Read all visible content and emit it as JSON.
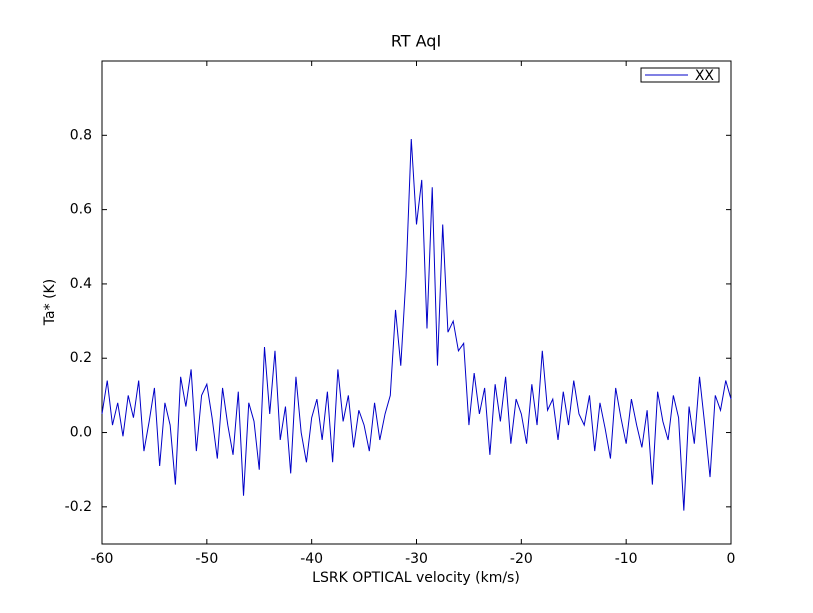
{
  "chart_data": {
    "type": "line",
    "title": "RT AqI",
    "x_label": "LSRK OPTICAL velocity (km/s)",
    "y_label": "Ta* (K)",
    "x": [
      -60,
      -59.5,
      -59,
      -58.5,
      -58,
      -57.5,
      -57,
      -56.5,
      -56,
      -55.5,
      -55,
      -54.5,
      -54,
      -53.5,
      -53,
      -52.5,
      -52,
      -51.5,
      -51,
      -50.5,
      -50,
      -49.5,
      -49,
      -48.5,
      -48,
      -47.5,
      -47,
      -46.5,
      -46,
      -45.5,
      -45,
      -44.5,
      -44,
      -43.5,
      -43,
      -42.5,
      -42,
      -41.5,
      -41,
      -40.5,
      -40,
      -39.5,
      -39,
      -38.5,
      -38,
      -37.5,
      -37,
      -36.5,
      -36,
      -35.5,
      -35,
      -34.5,
      -34,
      -33.5,
      -33,
      -32.5,
      -32,
      -31.5,
      -31,
      -30.5,
      -30,
      -29.5,
      -29,
      -28.5,
      -28,
      -27.5,
      -27,
      -26.5,
      -26,
      -25.5,
      -25,
      -24.5,
      -24,
      -23.5,
      -23,
      -22.5,
      -22,
      -21.5,
      -21,
      -20.5,
      -20,
      -19.5,
      -19,
      -18.5,
      -18,
      -17.5,
      -17,
      -16.5,
      -16,
      -15.5,
      -15,
      -14.5,
      -14,
      -13.5,
      -13,
      -12.5,
      -12,
      -11.5,
      -11,
      -10.5,
      -10,
      -9.5,
      -9,
      -8.5,
      -8,
      -7.5,
      -7,
      -6.5,
      -6,
      -5.5,
      -5,
      -4.5,
      -4,
      -3.5,
      -3,
      -2.5,
      -2,
      -1.5,
      -1,
      -0.5,
      0
    ],
    "series": [
      {
        "name": "XX",
        "color": "#0000c8",
        "values": [
          0.05,
          0.14,
          0.02,
          0.08,
          -0.01,
          0.1,
          0.04,
          0.14,
          -0.05,
          0.03,
          0.12,
          -0.09,
          0.08,
          0.02,
          -0.14,
          0.15,
          0.07,
          0.17,
          -0.05,
          0.1,
          0.13,
          0.04,
          -0.07,
          0.12,
          0.02,
          -0.06,
          0.11,
          -0.17,
          0.08,
          0.03,
          -0.1,
          0.23,
          0.05,
          0.22,
          -0.02,
          0.07,
          -0.11,
          0.15,
          0.0,
          -0.08,
          0.04,
          0.09,
          -0.02,
          0.11,
          -0.08,
          0.17,
          0.03,
          0.1,
          -0.04,
          0.06,
          0.02,
          -0.05,
          0.08,
          -0.02,
          0.05,
          0.1,
          0.33,
          0.18,
          0.42,
          0.79,
          0.56,
          0.68,
          0.28,
          0.66,
          0.18,
          0.56,
          0.27,
          0.3,
          0.22,
          0.24,
          0.02,
          0.16,
          0.05,
          0.12,
          -0.06,
          0.13,
          0.03,
          0.15,
          -0.03,
          0.09,
          0.05,
          -0.03,
          0.13,
          0.02,
          0.22,
          0.06,
          0.09,
          -0.02,
          0.11,
          0.02,
          0.14,
          0.05,
          0.02,
          0.1,
          -0.05,
          0.08,
          0.01,
          -0.07,
          0.12,
          0.04,
          -0.03,
          0.09,
          0.02,
          -0.04,
          0.06,
          -0.14,
          0.11,
          0.03,
          -0.02,
          0.1,
          0.04,
          -0.21,
          0.07,
          -0.03,
          0.15,
          0.02,
          -0.12,
          0.1,
          0.06,
          0.14,
          0.09
        ]
      }
    ],
    "xlim": [
      -60,
      0
    ],
    "xticks": [
      -60,
      -50,
      -40,
      -30,
      -20,
      -10,
      0
    ],
    "ylim": [
      -0.3,
      1.0
    ],
    "yticks": [
      -0.2,
      {
        "value": 0,
        "label": "0.0"
      },
      0.2,
      0.4,
      0.6,
      0.8
    ],
    "legend": "upper right"
  }
}
